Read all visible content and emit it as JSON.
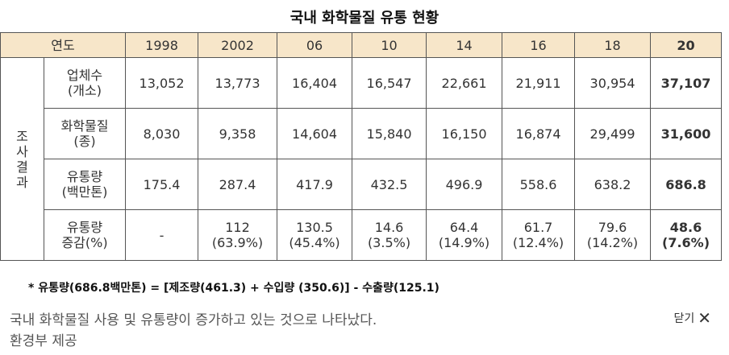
{
  "title": "국내 화학물질 유통 현황",
  "table": {
    "corner_label": "연도",
    "years": [
      "1998",
      "2002",
      "06",
      "10",
      "14",
      "16",
      "18",
      "20"
    ],
    "group_label": [
      "조",
      "사",
      "결",
      "과"
    ],
    "rows": [
      {
        "label": [
          "업체수",
          "(개소)"
        ],
        "values": [
          [
            "13,052"
          ],
          [
            "13,773"
          ],
          [
            "16,404"
          ],
          [
            "16,547"
          ],
          [
            "22,661"
          ],
          [
            "21,911"
          ],
          [
            "30,954"
          ],
          [
            "37,107"
          ]
        ]
      },
      {
        "label": [
          "화학물질",
          "(종)"
        ],
        "values": [
          [
            "8,030"
          ],
          [
            "9,358"
          ],
          [
            "14,604"
          ],
          [
            "15,840"
          ],
          [
            "16,150"
          ],
          [
            "16,874"
          ],
          [
            "29,499"
          ],
          [
            "31,600"
          ]
        ]
      },
      {
        "label": [
          "유통량",
          "(백만톤)"
        ],
        "values": [
          [
            "175.4"
          ],
          [
            "287.4"
          ],
          [
            "417.9"
          ],
          [
            "432.5"
          ],
          [
            "496.9"
          ],
          [
            "558.6"
          ],
          [
            "638.2"
          ],
          [
            "686.8"
          ]
        ]
      },
      {
        "label": [
          "유통량",
          "증감(%)"
        ],
        "values": [
          [
            "-"
          ],
          [
            "112",
            "(63.9%)"
          ],
          [
            "130.5",
            "(45.4%)"
          ],
          [
            "14.6",
            "(3.5%)"
          ],
          [
            "64.4",
            "(14.9%)"
          ],
          [
            "61.7",
            "(12.4%)"
          ],
          [
            "79.6",
            "(14.2%)"
          ],
          [
            "48.6",
            "(7.6%)"
          ]
        ]
      }
    ]
  },
  "footnote": "* 유통량(686.8백만톤) = [제조량(461.3) + 수입량 (350.6)] - 수출량(125.1)",
  "caption": {
    "line1": "국내 화학물질 사용 및 유통량이 증가하고 있는 것으로 나타났다.",
    "line2": "환경부 제공"
  },
  "close_label": "닫기"
}
